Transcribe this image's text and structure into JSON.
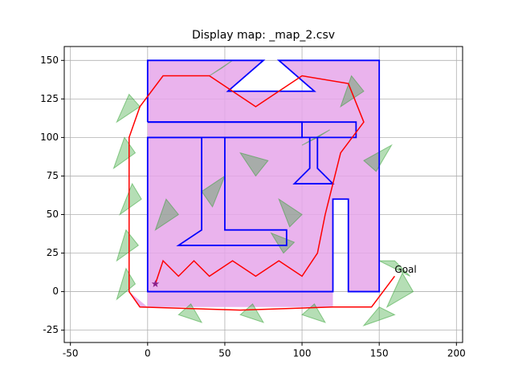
{
  "chart_data": {
    "type": "map",
    "title": "Display map: _map_2.csv",
    "xlim": [
      -54,
      204
    ],
    "ylim": [
      -33,
      159
    ],
    "xticks": [
      -50,
      0,
      50,
      100,
      150,
      200
    ],
    "yticks": [
      -25,
      0,
      25,
      50,
      75,
      100,
      125,
      150
    ],
    "grid": true,
    "free_space": {
      "color": "#e6a6ea",
      "x": [
        -12,
        -12,
        0,
        0,
        75,
        52,
        108,
        85,
        150,
        150,
        130,
        130,
        120,
        120,
        -5,
        -12
      ],
      "y": [
        110,
        0,
        -10,
        150,
        150,
        130,
        130,
        150,
        150,
        0,
        0,
        60,
        60,
        -10,
        -10,
        0
      ]
    },
    "cells": {
      "color": "#2ca02c",
      "x": [
        [
          -20,
          -5,
          -12
        ],
        [
          -22,
          -8,
          -15
        ],
        [
          -18,
          -4,
          -10
        ],
        [
          -20,
          -6,
          -14
        ],
        [
          -20,
          -8,
          -14
        ],
        [
          20,
          35,
          28
        ],
        [
          60,
          75,
          68
        ],
        [
          100,
          115,
          108
        ],
        [
          140,
          160,
          150
        ],
        [
          150,
          170,
          160
        ],
        [
          155,
          172,
          165
        ],
        [
          40,
          55,
          48
        ],
        [
          85,
          100,
          92
        ],
        [
          125,
          140,
          132
        ],
        [
          5,
          20,
          12
        ],
        [
          60,
          78,
          70
        ],
        [
          100,
          118,
          110
        ],
        [
          140,
          158,
          148
        ],
        [
          35,
          50,
          42
        ],
        [
          80,
          95,
          88
        ]
      ],
      "y": [
        [
          110,
          120,
          128
        ],
        [
          80,
          90,
          100
        ],
        [
          50,
          60,
          70
        ],
        [
          20,
          30,
          40
        ],
        [
          -5,
          5,
          15
        ],
        [
          -15,
          -20,
          -8
        ],
        [
          -15,
          -20,
          -8
        ],
        [
          -15,
          -20,
          -8
        ],
        [
          -22,
          -15,
          -10
        ],
        [
          20,
          10,
          20
        ],
        [
          -10,
          0,
          12
        ],
        [
          140,
          150,
          145
        ],
        [
          60,
          50,
          42
        ],
        [
          120,
          130,
          140
        ],
        [
          40,
          50,
          60
        ],
        [
          90,
          85,
          75
        ],
        [
          95,
          105,
          100
        ],
        [
          85,
          95,
          78
        ],
        [
          65,
          75,
          55
        ],
        [
          38,
          32,
          25
        ]
      ]
    },
    "walls": {
      "color": "#0000ff",
      "series": [
        {
          "x": [
            0,
            0,
            75,
            52,
            108,
            85,
            150,
            150,
            130,
            130,
            120,
            120,
            0,
            0,
            35,
            35,
            20,
            90,
            90,
            50,
            50,
            100,
            100,
            0
          ],
          "y": [
            110,
            150,
            150,
            130,
            130,
            150,
            150,
            0,
            0,
            60,
            60,
            0,
            0,
            100,
            100,
            40,
            30,
            30,
            40,
            40,
            100,
            100,
            110,
            110
          ]
        },
        {
          "x": [
            0,
            135,
            135,
            0
          ],
          "y": [
            110,
            110,
            100,
            100
          ]
        },
        {
          "x": [
            105,
            105,
            95,
            120,
            110,
            110
          ],
          "y": [
            100,
            80,
            70,
            70,
            80,
            100
          ]
        }
      ]
    },
    "path": {
      "color": "#ff0000",
      "x": [
        5,
        10,
        20,
        30,
        40,
        55,
        70,
        85,
        100,
        110,
        115,
        125,
        140,
        130,
        100,
        70,
        40,
        10,
        -5,
        -12,
        -12,
        -5,
        60,
        120,
        145,
        160
      ],
      "y": [
        5,
        20,
        10,
        20,
        10,
        20,
        10,
        20,
        10,
        25,
        50,
        90,
        110,
        135,
        140,
        120,
        140,
        140,
        120,
        100,
        0,
        -10,
        -12,
        -10,
        -10,
        10
      ]
    },
    "start": {
      "x": 5,
      "y": 5,
      "color": "#8a1f8a"
    },
    "goal": {
      "text": "Goal",
      "x": 160,
      "y": 14
    }
  }
}
